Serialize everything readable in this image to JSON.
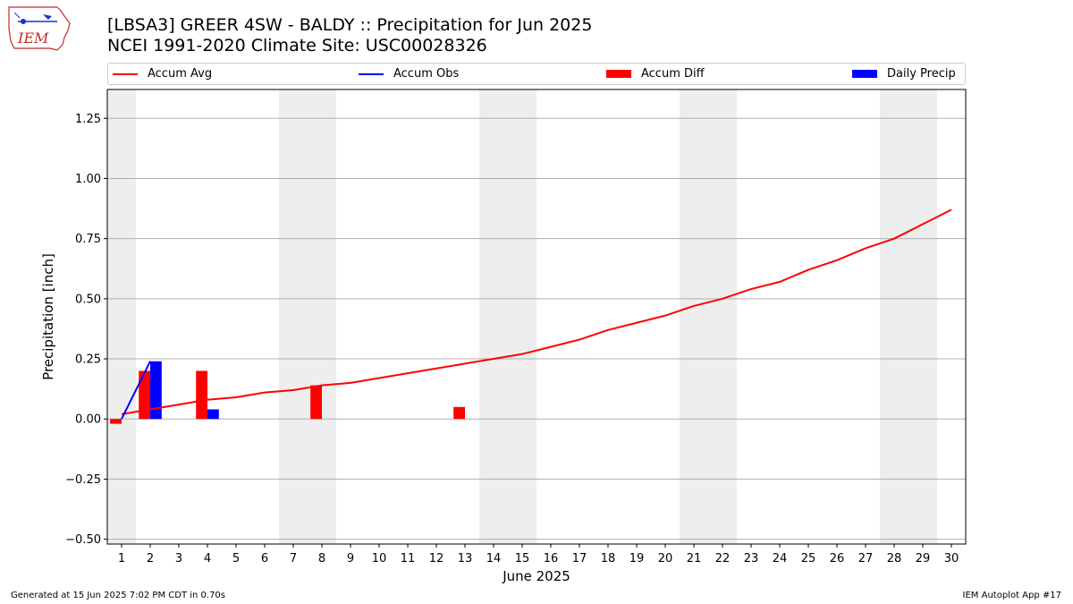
{
  "header": {
    "logo_text": "IEM",
    "title_line1": "[LBSA3] GREER 4SW - BALDY :: Precipitation for Jun 2025",
    "title_line2": "NCEI 1991-2020 Climate Site: USC00028326"
  },
  "footer": {
    "left": "Generated at 15 Jun 2025 7:02 PM CDT in 0.70s",
    "right": "IEM Autoplot App #17"
  },
  "legend": [
    {
      "label": "Accum Avg",
      "kind": "line",
      "color": "#ff0000"
    },
    {
      "label": "Accum Obs",
      "kind": "line",
      "color": "#0000ff"
    },
    {
      "label": "Accum Diff",
      "kind": "patch",
      "color": "#ff0000"
    },
    {
      "label": "Daily Precip",
      "kind": "patch",
      "color": "#0000ff"
    }
  ],
  "colors": {
    "avg": "#ff0000",
    "obs": "#0000ff",
    "diff": "#ff0000",
    "daily": "#0000ff",
    "weekend": "#eeeeee",
    "grid": "#b0b0b0"
  },
  "chart_data": {
    "type": "bar",
    "title": "[LBSA3] GREER 4SW - BALDY :: Precipitation for Jun 2025",
    "subtitle": "NCEI 1991-2020 Climate Site: USC00028326",
    "xlabel": "June 2025",
    "ylabel": "Precipitation [inch]",
    "xlim": [
      0.5,
      30.5
    ],
    "ylim": [
      -0.52,
      1.37
    ],
    "grid": "y",
    "legend_position": "top",
    "x": [
      1,
      2,
      3,
      4,
      5,
      6,
      7,
      8,
      9,
      10,
      11,
      12,
      13,
      14,
      15,
      16,
      17,
      18,
      19,
      20,
      21,
      22,
      23,
      24,
      25,
      26,
      27,
      28,
      29,
      30
    ],
    "x_tick_labels": [
      "1",
      "2",
      "3",
      "4",
      "5",
      "6",
      "7",
      "8",
      "9",
      "10",
      "11",
      "12",
      "13",
      "14",
      "15",
      "16",
      "17",
      "18",
      "19",
      "20",
      "21",
      "22",
      "23",
      "24",
      "25",
      "26",
      "27",
      "28",
      "29",
      "30"
    ],
    "y_ticks": [
      -0.5,
      -0.25,
      0.0,
      0.25,
      0.5,
      0.75,
      1.0,
      1.25
    ],
    "y_tick_labels": [
      "−0.50",
      "−0.25",
      "0.00",
      "0.25",
      "0.50",
      "0.75",
      "1.00",
      "1.25"
    ],
    "weekend_bands": [
      [
        0.5,
        1.5
      ],
      [
        6.5,
        8.5
      ],
      [
        13.5,
        15.5
      ],
      [
        20.5,
        22.5
      ],
      [
        27.5,
        29.5
      ]
    ],
    "series": [
      {
        "name": "Accum Avg",
        "type": "line",
        "values": [
          0.02,
          0.04,
          0.06,
          0.08,
          0.09,
          0.11,
          0.12,
          0.14,
          0.15,
          0.17,
          0.19,
          0.21,
          0.23,
          0.25,
          0.27,
          0.3,
          0.33,
          0.37,
          0.4,
          0.43,
          0.47,
          0.5,
          0.54,
          0.57,
          0.62,
          0.66,
          0.71,
          0.75,
          0.81,
          0.87
        ]
      },
      {
        "name": "Accum Obs",
        "type": "line",
        "x": [
          1,
          2
        ],
        "values": [
          0.0,
          0.24
        ]
      },
      {
        "name": "Accum Diff",
        "type": "bar",
        "x": [
          1,
          2,
          4,
          8,
          13
        ],
        "values": [
          -0.02,
          0.2,
          0.2,
          0.14,
          0.05
        ]
      },
      {
        "name": "Daily Precip",
        "type": "bar",
        "x": [
          2,
          4
        ],
        "values": [
          0.24,
          0.04
        ]
      }
    ]
  }
}
